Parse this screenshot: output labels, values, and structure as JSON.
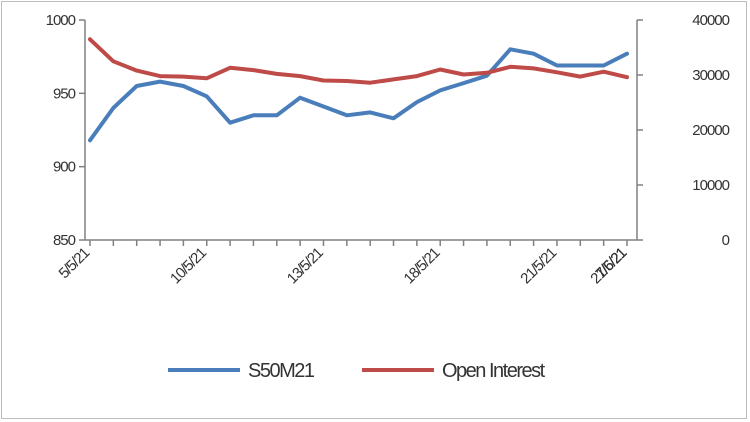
{
  "chart_data": {
    "type": "line",
    "x_tick_labels": [
      "5/5/21",
      "10/5/21",
      "13/5/21",
      "18/5/21",
      "21/5/21",
      "27/5/21",
      "1/6/21",
      "7/6/21"
    ],
    "x_tick_positions": [
      0,
      5,
      10,
      15,
      20,
      25,
      30,
      35
    ],
    "left_axis": {
      "ylim": [
        850,
        1000
      ],
      "ticks": [
        "850",
        "900",
        "950",
        "1000"
      ]
    },
    "right_axis": {
      "ylim": [
        0,
        40000
      ],
      "ticks": [
        "0",
        "10000",
        "20000",
        "30000",
        "40000"
      ]
    },
    "grid": false,
    "legend_position": "bottom",
    "series": [
      {
        "name": "S50M21",
        "axis": "left",
        "color": "#4a7ebb",
        "values": [
          918,
          940,
          955,
          958,
          955,
          948,
          930,
          935,
          935,
          947,
          941,
          935,
          937,
          933,
          944,
          952,
          957,
          962,
          980,
          977,
          969,
          969,
          969,
          977
        ]
      },
      {
        "name": "Open Interest",
        "axis": "right",
        "color": "#be4b48",
        "values": [
          36500,
          32500,
          30800,
          29800,
          29700,
          29400,
          31300,
          30900,
          30200,
          29800,
          29000,
          28900,
          28600,
          29200,
          29800,
          31000,
          30100,
          30400,
          31500,
          31200,
          30500,
          29700,
          30600,
          29600
        ]
      }
    ]
  }
}
